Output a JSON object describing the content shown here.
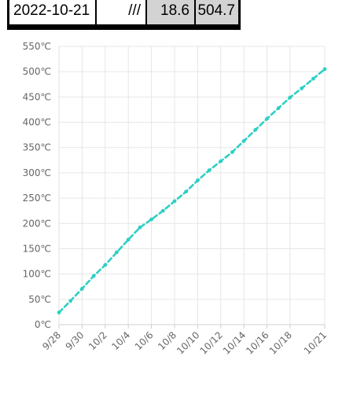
{
  "table_row": {
    "date": "2022-10-21",
    "mark": "///",
    "value_1": "18.6",
    "value_2": "504.7"
  },
  "colors": {
    "series": "#2ECFC4",
    "grid": "#e6e6e6",
    "cell_shaded": "#d3d3d3",
    "tick_text": "#666666"
  },
  "chart_data": {
    "type": "line",
    "title": "",
    "xlabel": "",
    "ylabel": "",
    "ylim": [
      0,
      550
    ],
    "y_unit": "℃",
    "y_ticks": [
      0,
      50,
      100,
      150,
      200,
      250,
      300,
      350,
      400,
      450,
      500,
      550
    ],
    "y_tick_labels": [
      "0℃",
      "50℃",
      "100℃",
      "150℃",
      "200℃",
      "250℃",
      "300℃",
      "350℃",
      "400℃",
      "450℃",
      "500℃",
      "550℃"
    ],
    "x_tick_labels": [
      "9/28",
      "9/30",
      "10/2",
      "10/4",
      "10/6",
      "10/8",
      "10/10",
      "10/12",
      "10/14",
      "10/16",
      "10/18",
      "10/21"
    ],
    "x_tick_index": [
      0,
      2,
      4,
      6,
      8,
      10,
      12,
      14,
      16,
      18,
      20,
      23
    ],
    "grid": true,
    "series": [
      {
        "values": [
          24,
          47,
          71,
          96,
          118,
          143,
          168,
          192,
          208,
          225,
          244,
          263,
          285,
          305,
          323,
          341,
          363,
          385,
          407,
          428,
          449,
          467,
          486,
          505
        ]
      }
    ]
  }
}
